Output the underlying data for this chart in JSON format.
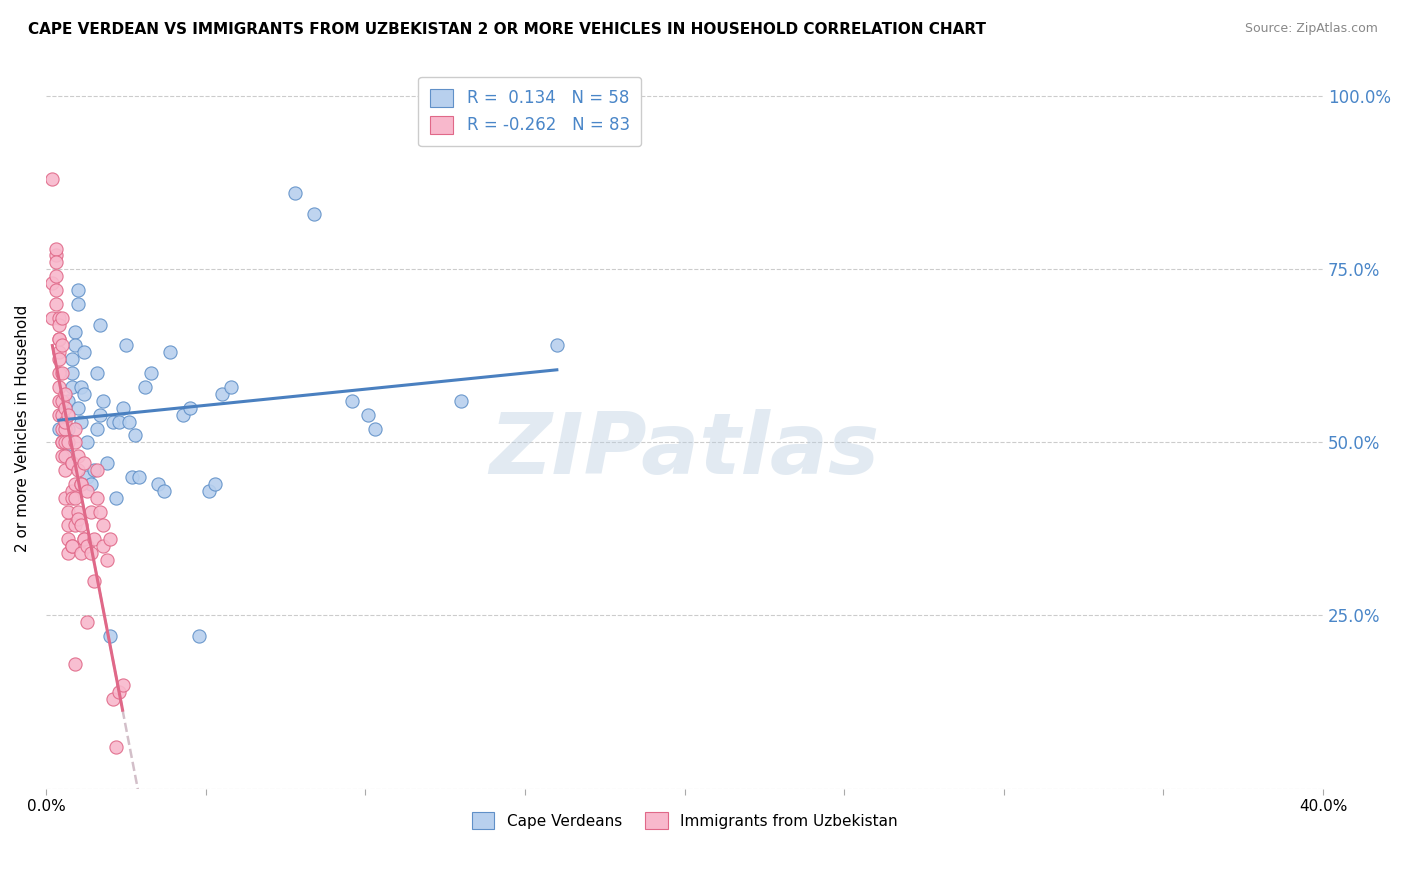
{
  "title": "CAPE VERDEAN VS IMMIGRANTS FROM UZBEKISTAN 2 OR MORE VEHICLES IN HOUSEHOLD CORRELATION CHART",
  "source": "Source: ZipAtlas.com",
  "ylabel": "2 or more Vehicles in Household",
  "legend_blue_label": "Cape Verdeans",
  "legend_pink_label": "Immigrants from Uzbekistan",
  "legend_blue_r": "0.134",
  "legend_blue_n": "58",
  "legend_pink_r": "-0.262",
  "legend_pink_n": "83",
  "blue_fill": "#b8d0ee",
  "pink_fill": "#f8b8cc",
  "blue_edge": "#6090c8",
  "pink_edge": "#e06888",
  "blue_line_color": "#4a80c0",
  "pink_solid_color": "#e06888",
  "pink_dashed_color": "#c8b0bc",
  "watermark": "ZIPatlas",
  "title_fontsize": 11,
  "xlim": [
    0.0,
    0.4
  ],
  "ylim": [
    0.0,
    1.04
  ],
  "y_ticks": [
    0.0,
    0.25,
    0.5,
    0.75,
    1.0
  ],
  "x_ticks": [
    0.0,
    0.05,
    0.1,
    0.15,
    0.2,
    0.25,
    0.3,
    0.35,
    0.4
  ],
  "blue_scatter": [
    [
      0.004,
      0.52
    ],
    [
      0.005,
      0.54
    ],
    [
      0.006,
      0.55
    ],
    [
      0.006,
      0.5
    ],
    [
      0.007,
      0.56
    ],
    [
      0.007,
      0.52
    ],
    [
      0.007,
      0.48
    ],
    [
      0.008,
      0.62
    ],
    [
      0.008,
      0.6
    ],
    [
      0.008,
      0.58
    ],
    [
      0.009,
      0.66
    ],
    [
      0.009,
      0.64
    ],
    [
      0.01,
      0.72
    ],
    [
      0.01,
      0.7
    ],
    [
      0.01,
      0.55
    ],
    [
      0.011,
      0.58
    ],
    [
      0.011,
      0.53
    ],
    [
      0.012,
      0.57
    ],
    [
      0.012,
      0.63
    ],
    [
      0.013,
      0.45
    ],
    [
      0.013,
      0.5
    ],
    [
      0.014,
      0.44
    ],
    [
      0.015,
      0.46
    ],
    [
      0.016,
      0.6
    ],
    [
      0.016,
      0.52
    ],
    [
      0.017,
      0.54
    ],
    [
      0.017,
      0.67
    ],
    [
      0.018,
      0.56
    ],
    [
      0.019,
      0.47
    ],
    [
      0.02,
      0.22
    ],
    [
      0.021,
      0.53
    ],
    [
      0.022,
      0.42
    ],
    [
      0.023,
      0.53
    ],
    [
      0.024,
      0.55
    ],
    [
      0.025,
      0.64
    ],
    [
      0.026,
      0.53
    ],
    [
      0.027,
      0.45
    ],
    [
      0.028,
      0.51
    ],
    [
      0.029,
      0.45
    ],
    [
      0.031,
      0.58
    ],
    [
      0.033,
      0.6
    ],
    [
      0.035,
      0.44
    ],
    [
      0.037,
      0.43
    ],
    [
      0.039,
      0.63
    ],
    [
      0.043,
      0.54
    ],
    [
      0.045,
      0.55
    ],
    [
      0.048,
      0.22
    ],
    [
      0.051,
      0.43
    ],
    [
      0.053,
      0.44
    ],
    [
      0.055,
      0.57
    ],
    [
      0.058,
      0.58
    ],
    [
      0.078,
      0.86
    ],
    [
      0.084,
      0.83
    ],
    [
      0.096,
      0.56
    ],
    [
      0.101,
      0.54
    ],
    [
      0.103,
      0.52
    ],
    [
      0.13,
      0.56
    ],
    [
      0.16,
      0.64
    ]
  ],
  "pink_scatter": [
    [
      0.002,
      0.88
    ],
    [
      0.002,
      0.68
    ],
    [
      0.002,
      0.73
    ],
    [
      0.003,
      0.77
    ],
    [
      0.003,
      0.74
    ],
    [
      0.003,
      0.72
    ],
    [
      0.003,
      0.78
    ],
    [
      0.003,
      0.76
    ],
    [
      0.003,
      0.7
    ],
    [
      0.004,
      0.68
    ],
    [
      0.004,
      0.65
    ],
    [
      0.004,
      0.63
    ],
    [
      0.004,
      0.62
    ],
    [
      0.004,
      0.6
    ],
    [
      0.004,
      0.67
    ],
    [
      0.004,
      0.65
    ],
    [
      0.004,
      0.58
    ],
    [
      0.004,
      0.56
    ],
    [
      0.004,
      0.54
    ],
    [
      0.005,
      0.68
    ],
    [
      0.005,
      0.64
    ],
    [
      0.005,
      0.6
    ],
    [
      0.005,
      0.52
    ],
    [
      0.005,
      0.5
    ],
    [
      0.005,
      0.56
    ],
    [
      0.005,
      0.54
    ],
    [
      0.005,
      0.5
    ],
    [
      0.005,
      0.48
    ],
    [
      0.006,
      0.55
    ],
    [
      0.006,
      0.52
    ],
    [
      0.006,
      0.5
    ],
    [
      0.006,
      0.46
    ],
    [
      0.006,
      0.57
    ],
    [
      0.006,
      0.53
    ],
    [
      0.006,
      0.48
    ],
    [
      0.006,
      0.42
    ],
    [
      0.007,
      0.54
    ],
    [
      0.007,
      0.38
    ],
    [
      0.007,
      0.36
    ],
    [
      0.007,
      0.5
    ],
    [
      0.007,
      0.4
    ],
    [
      0.007,
      0.34
    ],
    [
      0.008,
      0.47
    ],
    [
      0.008,
      0.43
    ],
    [
      0.008,
      0.35
    ],
    [
      0.008,
      0.47
    ],
    [
      0.008,
      0.42
    ],
    [
      0.008,
      0.35
    ],
    [
      0.009,
      0.52
    ],
    [
      0.009,
      0.44
    ],
    [
      0.009,
      0.18
    ],
    [
      0.009,
      0.5
    ],
    [
      0.009,
      0.42
    ],
    [
      0.009,
      0.38
    ],
    [
      0.01,
      0.46
    ],
    [
      0.01,
      0.4
    ],
    [
      0.01,
      0.48
    ],
    [
      0.01,
      0.39
    ],
    [
      0.011,
      0.44
    ],
    [
      0.011,
      0.38
    ],
    [
      0.011,
      0.44
    ],
    [
      0.011,
      0.34
    ],
    [
      0.012,
      0.47
    ],
    [
      0.012,
      0.36
    ],
    [
      0.012,
      0.36
    ],
    [
      0.013,
      0.43
    ],
    [
      0.013,
      0.35
    ],
    [
      0.013,
      0.24
    ],
    [
      0.014,
      0.34
    ],
    [
      0.014,
      0.4
    ],
    [
      0.015,
      0.36
    ],
    [
      0.015,
      0.3
    ],
    [
      0.016,
      0.42
    ],
    [
      0.016,
      0.46
    ],
    [
      0.017,
      0.4
    ],
    [
      0.018,
      0.38
    ],
    [
      0.018,
      0.35
    ],
    [
      0.019,
      0.33
    ],
    [
      0.02,
      0.36
    ],
    [
      0.021,
      0.13
    ],
    [
      0.022,
      0.06
    ],
    [
      0.023,
      0.14
    ],
    [
      0.024,
      0.15
    ]
  ]
}
